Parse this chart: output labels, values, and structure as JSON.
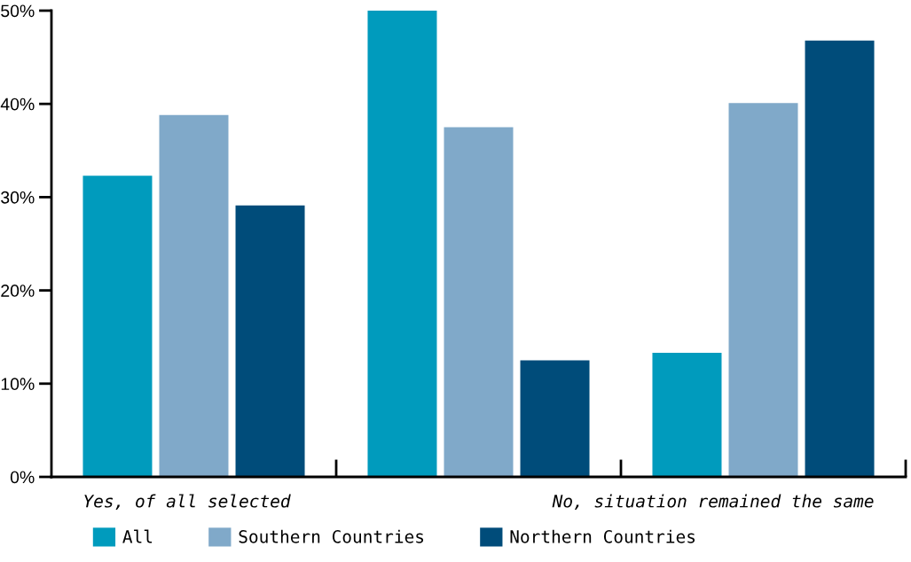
{
  "chart_data": {
    "type": "bar",
    "categories": [
      "Yes, of all selected",
      null,
      "No, situation remained the same"
    ],
    "series": [
      {
        "name": "All",
        "color": "#009bbd",
        "values": [
          32.3,
          50,
          13.3
        ]
      },
      {
        "name": "Southern Countries",
        "color": "#80a9c9",
        "values": [
          38.8,
          37.5,
          40.1
        ]
      },
      {
        "name": "Northern Countries",
        "color": "#004c7a",
        "values": [
          29.1,
          12.5,
          46.8
        ]
      }
    ],
    "ylim": [
      0,
      50
    ],
    "yticks": [
      {
        "value": 0,
        "label": "0%"
      },
      {
        "value": 10,
        "label": "10%"
      },
      {
        "value": 20,
        "label": "20%"
      },
      {
        "value": 30,
        "label": "30%"
      },
      {
        "value": 40,
        "label": "40%"
      },
      {
        "value": 50,
        "label": "50%"
      }
    ],
    "grid": false,
    "legend": "bottom"
  }
}
